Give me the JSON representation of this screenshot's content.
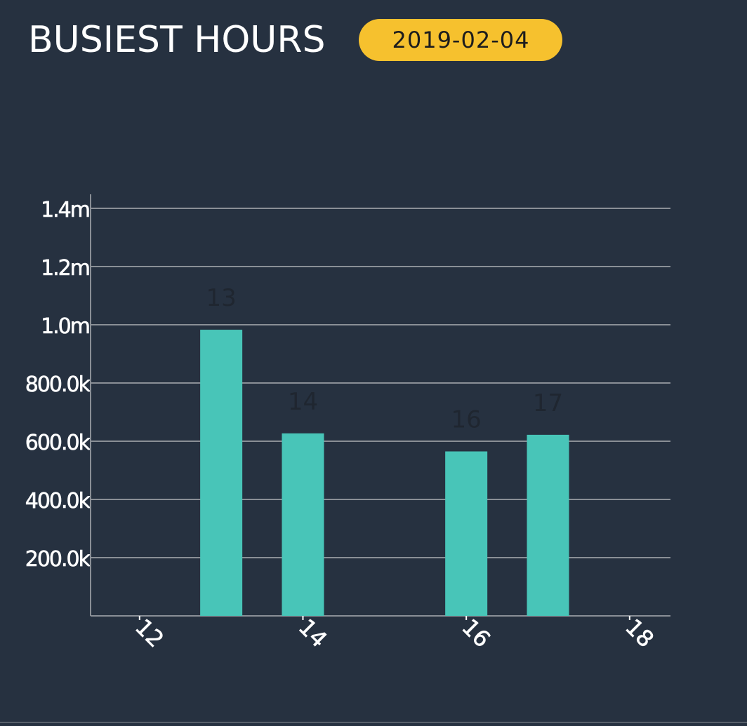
{
  "header": {
    "title": "BUSIEST HOURS",
    "date": "2019-02-04"
  },
  "colors": {
    "background": "#263140",
    "bar": "#48c5b8",
    "badge": "#f6c12e",
    "grid": "#8a8f96"
  },
  "chart_data": {
    "type": "bar",
    "title": "",
    "xlabel": "",
    "ylabel": "",
    "x_ticks": [
      "12",
      "14",
      "16",
      "18"
    ],
    "x_tick_values": [
      12,
      14,
      16,
      18
    ],
    "xlim": [
      11.4,
      18.5
    ],
    "ylim": [
      0,
      1400000
    ],
    "y_ticks": [
      {
        "value": 200000,
        "label": "200.0k"
      },
      {
        "value": 400000,
        "label": "400.0k"
      },
      {
        "value": 600000,
        "label": "600.0k"
      },
      {
        "value": 800000,
        "label": "800.0k"
      },
      {
        "value": 1000000,
        "label": "1.0m"
      },
      {
        "value": 1200000,
        "label": "1.2m"
      },
      {
        "value": 1400000,
        "label": "1.4m"
      }
    ],
    "bars": [
      {
        "x": 13,
        "label": "13",
        "value": 983000
      },
      {
        "x": 14,
        "label": "14",
        "value": 627000
      },
      {
        "x": 16,
        "label": "16",
        "value": 565000
      },
      {
        "x": 17,
        "label": "17",
        "value": 622000
      }
    ],
    "grid": true,
    "legend": "none"
  }
}
